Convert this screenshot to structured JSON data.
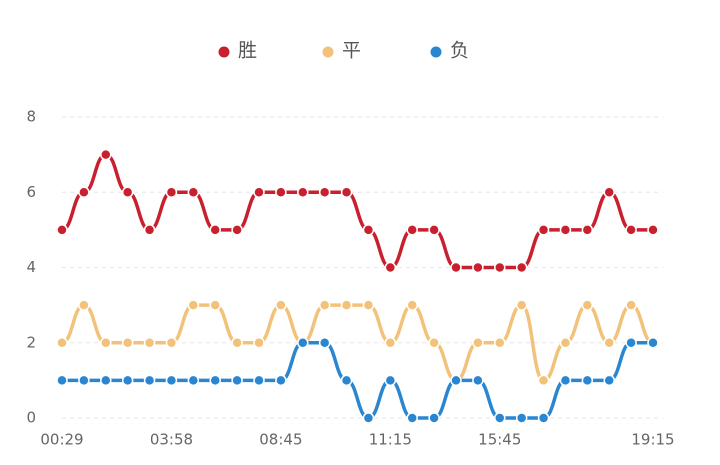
{
  "chart_data": {
    "type": "line",
    "categories": [
      "00:29",
      null,
      null,
      null,
      null,
      "03:58",
      null,
      null,
      null,
      null,
      "08:45",
      null,
      null,
      null,
      null,
      "11:15",
      null,
      null,
      null,
      null,
      "15:45",
      null,
      null,
      null,
      null,
      null,
      null,
      "19:15"
    ],
    "series": [
      {
        "name": "胜",
        "color": "#c8202f",
        "values": [
          5,
          6,
          7,
          6,
          5,
          6,
          6,
          5,
          5,
          6,
          6,
          6,
          6,
          6,
          5,
          4,
          5,
          5,
          4,
          4,
          4,
          4,
          5,
          5,
          5,
          6,
          5,
          5
        ]
      },
      {
        "name": "平",
        "color": "#f2c27a",
        "values": [
          2,
          3,
          2,
          2,
          2,
          2,
          3,
          3,
          2,
          2,
          3,
          2,
          3,
          3,
          3,
          2,
          3,
          2,
          1,
          2,
          2,
          3,
          1,
          2,
          3,
          2,
          3,
          2
        ]
      },
      {
        "name": "负",
        "color": "#2a86d1",
        "values": [
          1,
          1,
          1,
          1,
          1,
          1,
          1,
          1,
          1,
          1,
          1,
          2,
          2,
          1,
          0,
          1,
          0,
          0,
          1,
          1,
          0,
          0,
          0,
          1,
          1,
          1,
          2,
          2
        ]
      }
    ],
    "ylim": [
      0,
      8
    ],
    "yticks": [
      0,
      2,
      4,
      6,
      8
    ],
    "grid": true
  }
}
